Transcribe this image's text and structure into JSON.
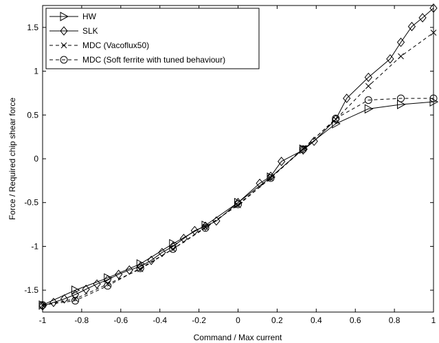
{
  "chart_data": {
    "type": "line",
    "title": "",
    "xlabel": "Command / Max current",
    "ylabel": "Force / Required chip shear force",
    "xlim": [
      -1,
      1
    ],
    "ylim": [
      -1.75,
      1.75
    ],
    "xticks": [
      -1,
      -0.8,
      -0.6,
      -0.4,
      -0.2,
      0,
      0.2,
      0.4,
      0.6,
      0.8,
      1
    ],
    "xtick_labels": [
      "-1",
      "-0.8",
      "-0.6",
      "-0.4",
      "-0.2",
      "0",
      "0.2",
      "0.4",
      "0.6",
      "0.8",
      "1"
    ],
    "yticks": [
      -1.5,
      -1,
      -0.5,
      0,
      0.5,
      1,
      1.5
    ],
    "ytick_labels": [
      "-1.5",
      "-1",
      "-0.5",
      "0",
      "0.5",
      "1",
      "1.5"
    ],
    "grid": false,
    "legend_position": "top-left",
    "series": [
      {
        "name": "HW",
        "line_style": "solid",
        "marker": "triangle-right",
        "points": [
          [
            -1,
            -1.67
          ],
          [
            -0.833,
            -1.5
          ],
          [
            -0.667,
            -1.36
          ],
          [
            -0.5,
            -1.2
          ],
          [
            -0.333,
            -0.97
          ],
          [
            -0.167,
            -0.76
          ],
          [
            0,
            -0.5
          ],
          [
            0.167,
            -0.21
          ],
          [
            0.333,
            0.11
          ],
          [
            0.5,
            0.4
          ],
          [
            0.667,
            0.57
          ],
          [
            0.833,
            0.62
          ],
          [
            1,
            0.65
          ]
        ]
      },
      {
        "name": "SLK",
        "line_style": "solid",
        "marker": "diamond",
        "points": [
          [
            -1,
            -1.68
          ],
          [
            -0.944,
            -1.64
          ],
          [
            -0.889,
            -1.6
          ],
          [
            -0.833,
            -1.55
          ],
          [
            -0.778,
            -1.49
          ],
          [
            -0.722,
            -1.43
          ],
          [
            -0.667,
            -1.38
          ],
          [
            -0.611,
            -1.32
          ],
          [
            -0.556,
            -1.27
          ],
          [
            -0.5,
            -1.23
          ],
          [
            -0.444,
            -1.16
          ],
          [
            -0.389,
            -1.07
          ],
          [
            -0.333,
            -1.0
          ],
          [
            -0.278,
            -0.91
          ],
          [
            -0.222,
            -0.82
          ],
          [
            -0.167,
            -0.77
          ],
          [
            -0.111,
            -0.71
          ],
          [
            0,
            -0.5
          ],
          [
            0.111,
            -0.28
          ],
          [
            0.167,
            -0.2
          ],
          [
            0.222,
            -0.03
          ],
          [
            0.333,
            0.1
          ],
          [
            0.389,
            0.2
          ],
          [
            0.5,
            0.45
          ],
          [
            0.556,
            0.69
          ],
          [
            0.667,
            0.93
          ],
          [
            0.778,
            1.14
          ],
          [
            0.833,
            1.33
          ],
          [
            0.889,
            1.51
          ],
          [
            0.944,
            1.61
          ],
          [
            1,
            1.72
          ]
        ]
      },
      {
        "name": "MDC (Vacoflux50)",
        "line_style": "dashed",
        "marker": "x",
        "points": [
          [
            -1,
            -1.67
          ],
          [
            -0.833,
            -1.6
          ],
          [
            -0.667,
            -1.43
          ],
          [
            -0.5,
            -1.26
          ],
          [
            -0.333,
            -1.03
          ],
          [
            -0.167,
            -0.78
          ],
          [
            0,
            -0.53
          ],
          [
            0.167,
            -0.22
          ],
          [
            0.333,
            0.12
          ],
          [
            0.5,
            0.45
          ],
          [
            0.667,
            0.83
          ],
          [
            0.833,
            1.17
          ],
          [
            1,
            1.44
          ]
        ]
      },
      {
        "name": "MDC (Soft ferrite with tuned behaviour)",
        "line_style": "dashed",
        "marker": "circle",
        "points": [
          [
            -1,
            -1.67
          ],
          [
            -0.833,
            -1.62
          ],
          [
            -0.667,
            -1.45
          ],
          [
            -0.5,
            -1.25
          ],
          [
            -0.333,
            -1.03
          ],
          [
            -0.167,
            -0.79
          ],
          [
            0,
            -0.52
          ],
          [
            0.167,
            -0.22
          ],
          [
            0.333,
            0.11
          ],
          [
            0.5,
            0.46
          ],
          [
            0.667,
            0.67
          ],
          [
            0.833,
            0.69
          ],
          [
            1,
            0.69
          ]
        ]
      }
    ]
  }
}
